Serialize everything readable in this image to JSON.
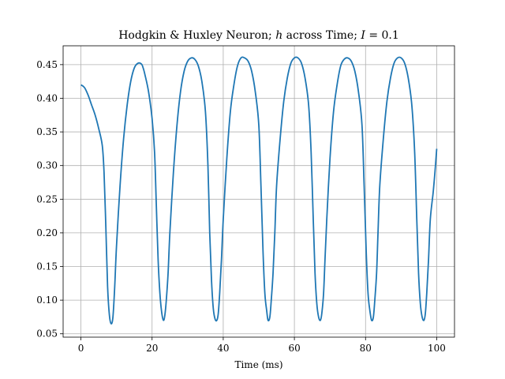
{
  "chart_data": {
    "type": "line",
    "title": {
      "prefix": "Hodgkin & Huxley Neuron; ",
      "var": "h",
      "middle": " across Time; ",
      "param": "I",
      "suffix": " = 0.1"
    },
    "xlabel": "Time (ms)",
    "ylabel": "",
    "xlim": [
      -5,
      105
    ],
    "ylim": [
      0.045,
      0.478
    ],
    "x_ticks": [
      0,
      20,
      40,
      60,
      80,
      100
    ],
    "y_ticks": [
      0.05,
      0.1,
      0.15,
      0.2,
      0.25,
      0.3,
      0.35,
      0.4,
      0.45
    ],
    "y_tick_labels": [
      "0.05",
      "0.10",
      "0.15",
      "0.20",
      "0.25",
      "0.30",
      "0.35",
      "0.40",
      "0.45"
    ],
    "grid": true,
    "line_color": "#1f77b4",
    "series": [
      {
        "x": [
          0,
          1,
          2,
          3,
          4,
          5,
          6,
          6.5,
          7,
          7.5,
          8,
          8.5,
          9,
          9.5,
          10,
          11,
          12,
          13,
          14,
          15,
          16,
          17,
          17.5,
          18,
          19,
          20,
          20.7,
          21.2,
          21.7,
          22.2,
          22.7,
          23.2,
          23.6,
          24,
          24.5,
          25,
          26,
          27,
          28,
          29,
          30,
          31,
          32,
          33,
          34,
          35,
          35.7,
          36.2,
          36.7,
          37.2,
          37.7,
          38.2,
          38.6,
          39,
          39.5,
          40,
          41,
          42,
          43,
          44,
          45,
          46,
          47,
          48,
          49,
          50,
          50.6,
          51.2,
          51.7,
          52.2,
          52.6,
          53.1,
          53.5,
          54,
          54.5,
          55,
          56,
          57,
          58,
          59,
          60,
          61,
          62,
          63,
          64,
          64.7,
          65.3,
          65.8,
          66.3,
          66.8,
          67.3,
          67.7,
          68.2,
          68.6,
          69.1,
          70,
          71,
          72,
          73,
          74,
          75,
          76,
          77,
          78,
          79,
          79.6,
          80.2,
          80.7,
          81.2,
          81.7,
          82.2,
          82.6,
          83.1,
          83.5,
          84,
          85,
          86,
          87,
          88,
          89,
          90,
          91,
          92,
          93,
          93.8,
          94.4,
          94.9,
          95.4,
          95.9,
          96.4,
          96.8,
          97.2,
          97.7,
          98.2,
          99,
          99.5,
          100
        ],
        "y": [
          0.42,
          0.416,
          0.405,
          0.39,
          0.375,
          0.355,
          0.33,
          0.29,
          0.21,
          0.12,
          0.078,
          0.065,
          0.075,
          0.12,
          0.18,
          0.27,
          0.34,
          0.39,
          0.425,
          0.445,
          0.452,
          0.451,
          0.445,
          0.435,
          0.41,
          0.37,
          0.32,
          0.24,
          0.16,
          0.11,
          0.082,
          0.07,
          0.078,
          0.1,
          0.14,
          0.2,
          0.29,
          0.36,
          0.41,
          0.44,
          0.455,
          0.46,
          0.458,
          0.448,
          0.425,
          0.38,
          0.3,
          0.2,
          0.13,
          0.088,
          0.072,
          0.07,
          0.08,
          0.11,
          0.16,
          0.22,
          0.31,
          0.38,
          0.42,
          0.448,
          0.46,
          0.46,
          0.455,
          0.44,
          0.41,
          0.36,
          0.27,
          0.17,
          0.11,
          0.085,
          0.07,
          0.075,
          0.1,
          0.14,
          0.2,
          0.27,
          0.34,
          0.395,
          0.43,
          0.452,
          0.46,
          0.46,
          0.452,
          0.43,
          0.39,
          0.32,
          0.22,
          0.14,
          0.095,
          0.075,
          0.07,
          0.08,
          0.11,
          0.16,
          0.22,
          0.31,
          0.38,
          0.42,
          0.448,
          0.458,
          0.46,
          0.455,
          0.44,
          0.41,
          0.36,
          0.27,
          0.17,
          0.11,
          0.085,
          0.07,
          0.075,
          0.1,
          0.14,
          0.2,
          0.27,
          0.34,
          0.395,
          0.43,
          0.452,
          0.46,
          0.46,
          0.452,
          0.43,
          0.39,
          0.32,
          0.22,
          0.14,
          0.095,
          0.075,
          0.07,
          0.08,
          0.11,
          0.16,
          0.22,
          0.26,
          0.29,
          0.325
        ]
      }
    ]
  }
}
